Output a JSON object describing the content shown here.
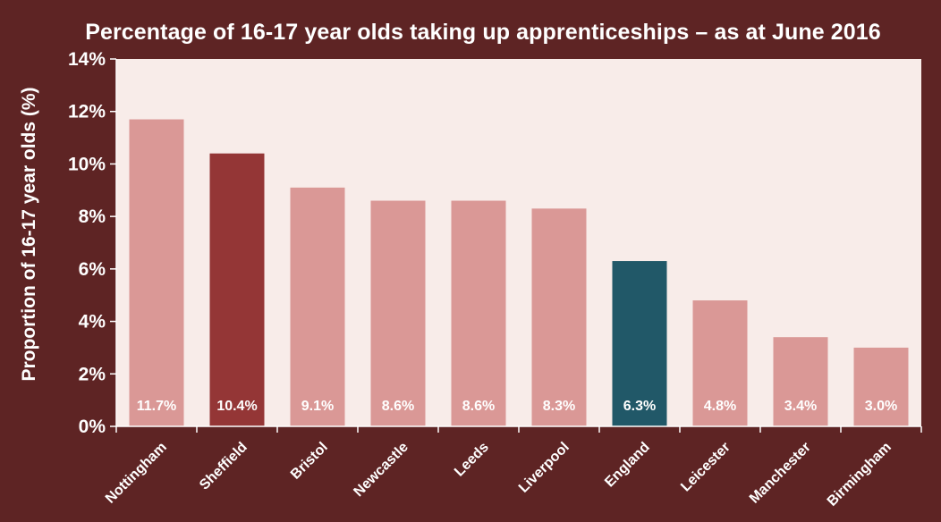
{
  "chart_data": {
    "type": "bar",
    "title": "Percentage of 16-17 year olds taking up apprenticeships – as at June 2016",
    "xlabel": "",
    "ylabel": "Proportion of 16-17 year olds (%)",
    "ylim": [
      0,
      14
    ],
    "yticks": [
      0,
      2,
      4,
      6,
      8,
      10,
      12,
      14
    ],
    "ytick_labels": [
      "0%",
      "2%",
      "4%",
      "6%",
      "8%",
      "10%",
      "12%",
      "14%"
    ],
    "categories": [
      "Nottingham",
      "Sheffield",
      "Bristol",
      "Newcastle",
      "Leeds",
      "Liverpool",
      "England",
      "Leicester",
      "Manchester",
      "Birmingham"
    ],
    "values": [
      11.7,
      10.4,
      9.1,
      8.6,
      8.6,
      8.3,
      6.3,
      4.8,
      3.4,
      3.0
    ],
    "value_labels": [
      "11.7%",
      "10.4%",
      "9.1%",
      "8.6%",
      "8.6%",
      "8.3%",
      "6.3%",
      "4.8%",
      "3.4%",
      "3.0%"
    ],
    "bar_colors": [
      "#da9896",
      "#943636",
      "#da9896",
      "#da9896",
      "#da9896",
      "#da9896",
      "#215868",
      "#da9896",
      "#da9896",
      "#da9896"
    ],
    "plot_background": "#f8ece9",
    "grid": false,
    "legend": "none"
  }
}
